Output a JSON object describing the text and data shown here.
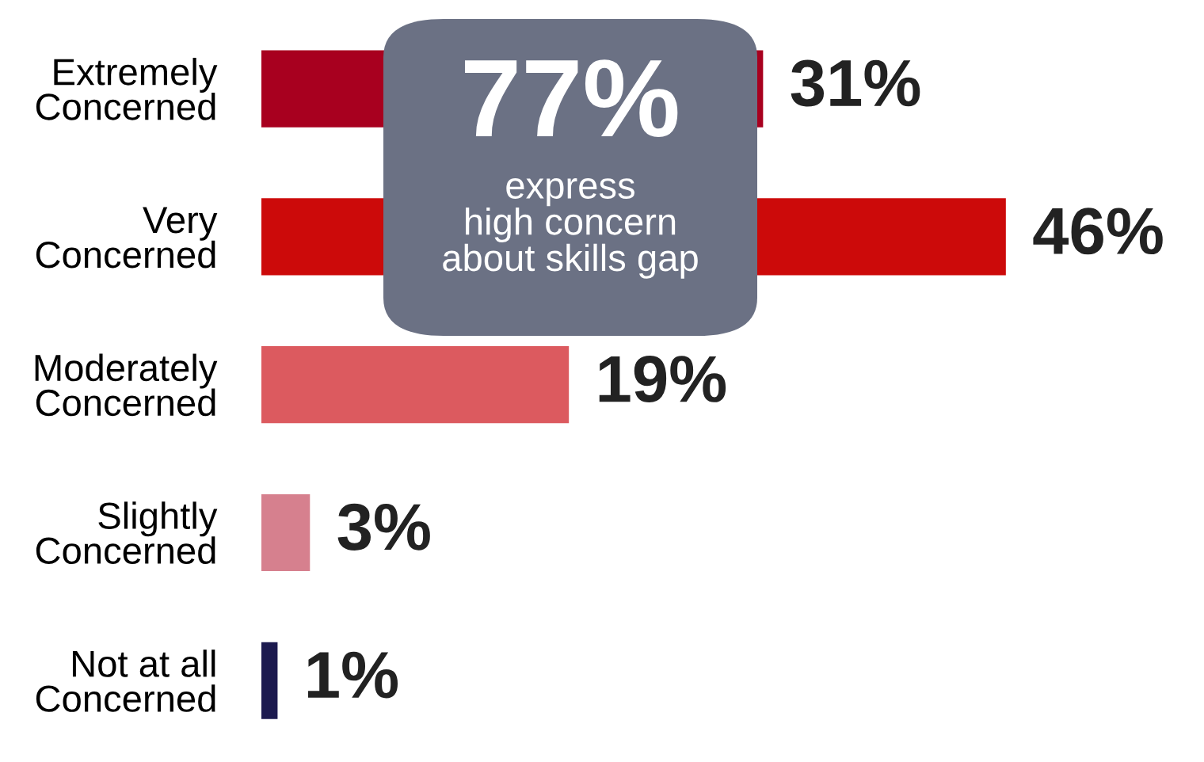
{
  "chart_data": {
    "type": "bar",
    "orientation": "horizontal",
    "categories": [
      "Extremely\nConcerned",
      "Very\nConcerned",
      "Moderately\nConcerned",
      "Slightly\nConcerned",
      "Not at all\nConcerned"
    ],
    "values": [
      31,
      46,
      19,
      3,
      1
    ],
    "colors": [
      "#a8001f",
      "#cc0a0a",
      "#dc5a5f",
      "#d6808e",
      "#1c1a4f"
    ],
    "data_labels": true,
    "value_labels": [
      "31%",
      "46%",
      "19%",
      "3%",
      "1%"
    ],
    "tick_labels": "y",
    "grid": false,
    "legend": false,
    "annotations": [
      "77%",
      "express\nhigh concern\nabout skills gap"
    ]
  }
}
